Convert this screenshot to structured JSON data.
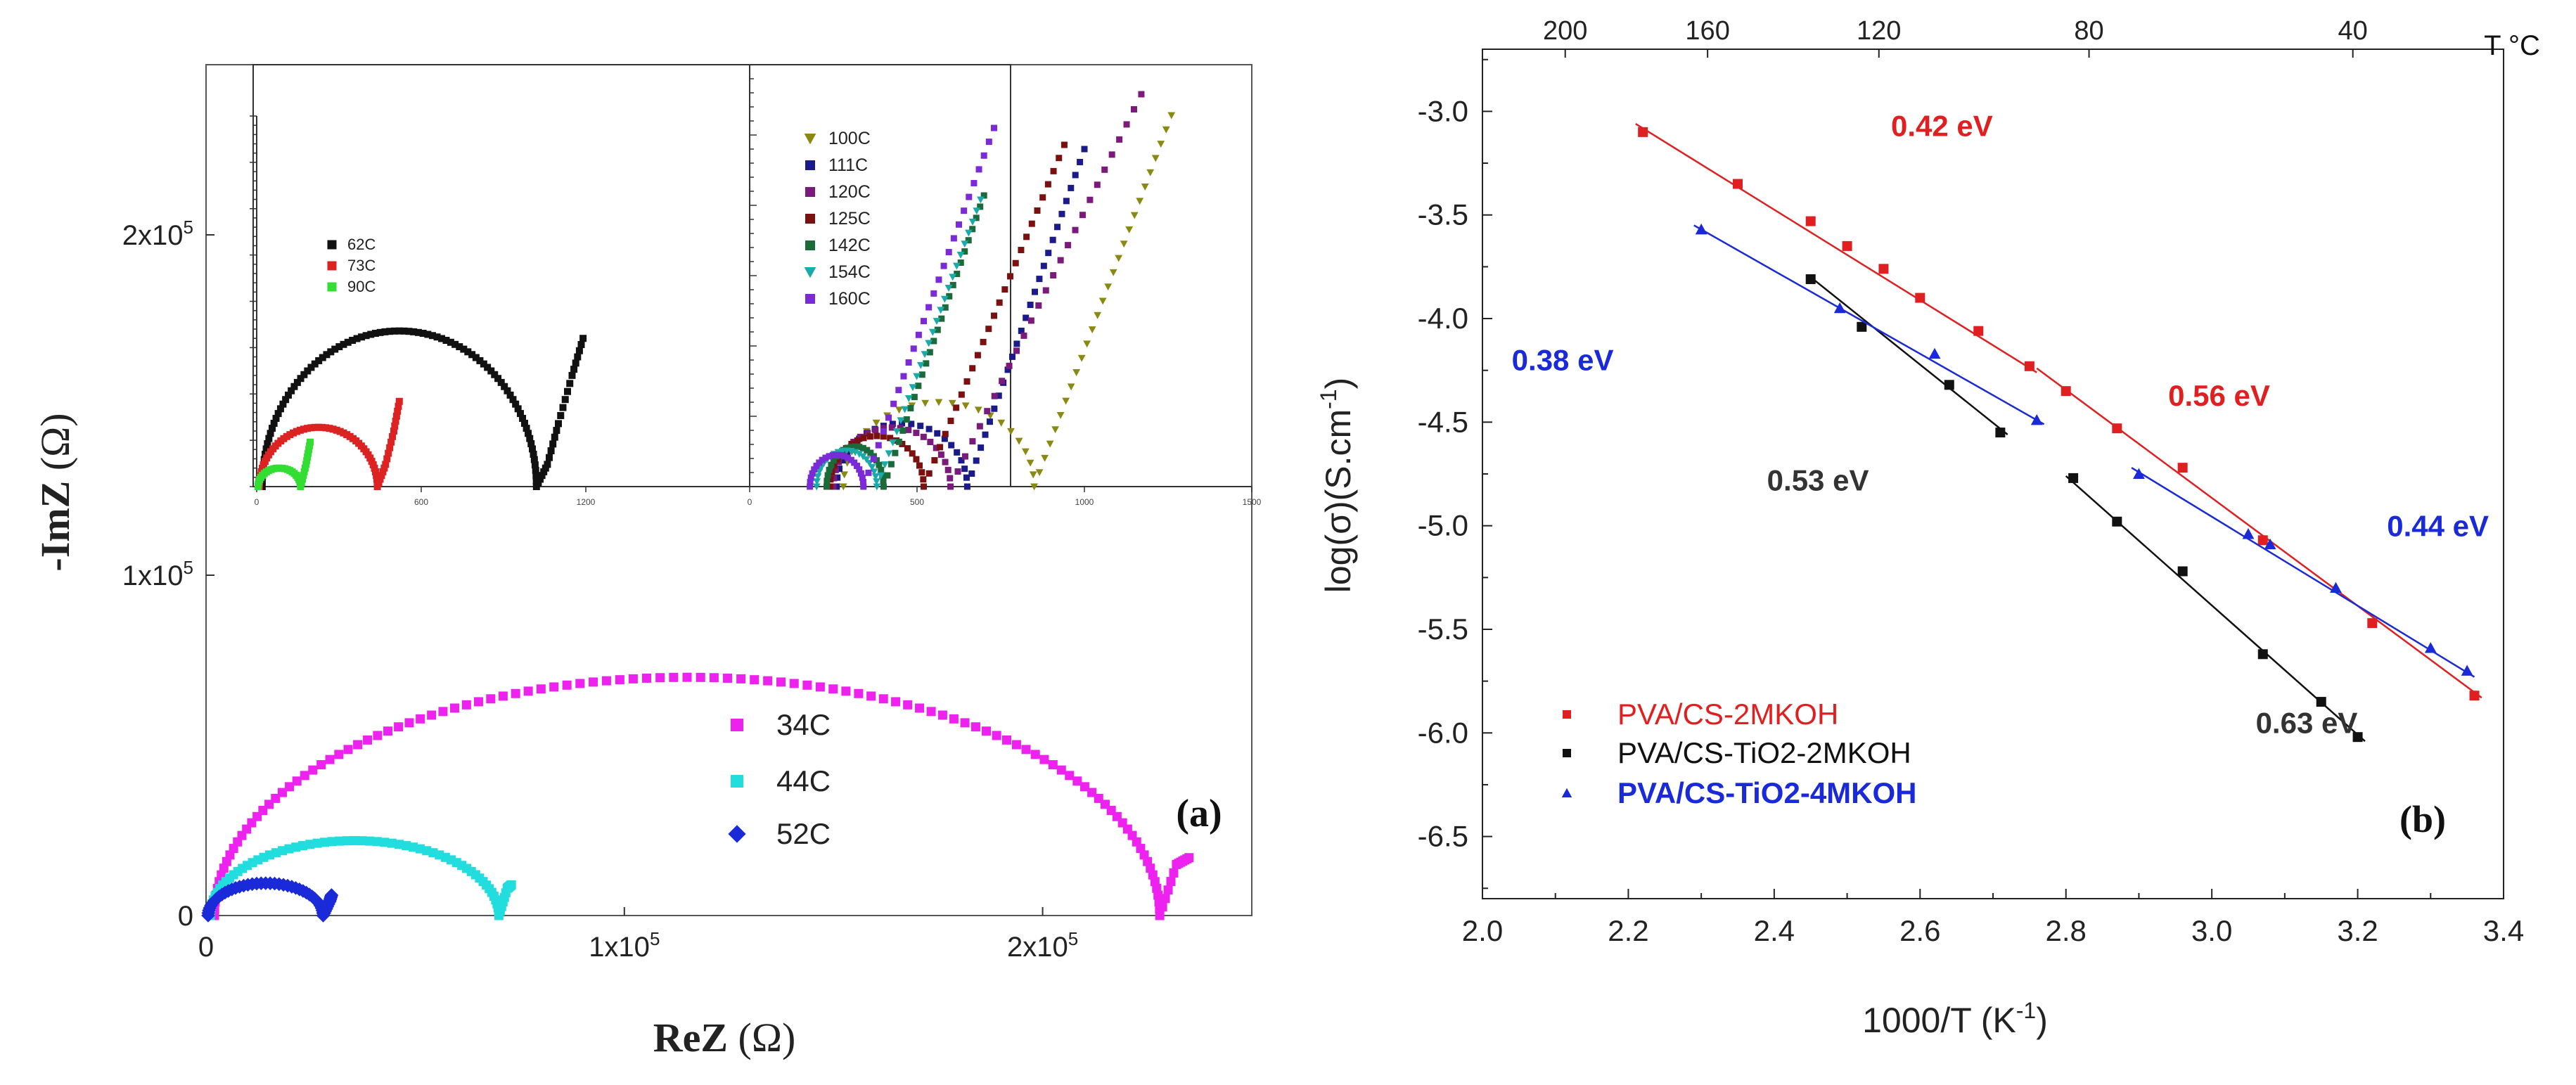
{
  "chart_data": [
    {
      "type": "scatter",
      "panel_label": "(a)",
      "xlabel_main": "ReZ",
      "xlabel_unit": "(Ω)",
      "ylabel_main": "-ImZ",
      "ylabel_unit": "(Ω)",
      "xlim": [
        0,
        250000
      ],
      "ylim": [
        0,
        250000
      ],
      "x_ticks": [
        {
          "v": 0,
          "m": "0",
          "e": ""
        },
        {
          "v": 100000,
          "m": "1x10",
          "e": "5"
        },
        {
          "v": 200000,
          "m": "2x10",
          "e": "5"
        }
      ],
      "y_ticks": [
        {
          "v": 0,
          "m": "0",
          "e": ""
        },
        {
          "v": 100000,
          "m": "1x10",
          "e": "5"
        },
        {
          "v": 200000,
          "m": "2x10",
          "e": "5"
        }
      ],
      "series": [
        {
          "name": "34C",
          "color": "#ee22ee",
          "marker": "square",
          "shape": "arc",
          "r0": 2000,
          "r1": 228000,
          "peak": 70000,
          "tail": [
            [
              232000,
              15000
            ],
            [
              235000,
              17000
            ]
          ]
        },
        {
          "name": "44C",
          "color": "#22dddd",
          "marker": "square",
          "shape": "arc",
          "r0": 1000,
          "r1": 70000,
          "peak": 22000,
          "tail": [
            [
              72000,
              8000
            ],
            [
              73000,
              9000
            ]
          ]
        },
        {
          "name": "52C",
          "color": "#1a2ad8",
          "marker": "diamond",
          "shape": "arc",
          "r0": 500,
          "r1": 28000,
          "peak": 9500,
          "tail": [
            [
              29500,
              4000
            ],
            [
              30000,
              6000
            ]
          ]
        }
      ],
      "insets": [
        {
          "type": "scatter",
          "xlim": [
            0,
            1500
          ],
          "ylim": [
            0,
            1000
          ],
          "x_ticks": [
            {
              "v": 0,
              "label": "0"
            },
            {
              "v": 600,
              "label": "600"
            },
            {
              "v": 1200,
              "label": "1200"
            }
          ],
          "series": [
            {
              "name": "62C",
              "color": "#111111",
              "marker": "square",
              "shape": "arc",
              "r0": 20,
              "r1": 1020,
              "peak": 420,
              "tail": [
                [
                  1060,
                  60
                ],
                [
                  1100,
                  170
                ],
                [
                  1150,
                  300
                ],
                [
                  1190,
                  400
                ]
              ]
            },
            {
              "name": "73C",
              "color": "#dd2222",
              "marker": "square",
              "shape": "arc",
              "r0": 10,
              "r1": 440,
              "peak": 160,
              "tail": [
                [
                  470,
                  60
                ],
                [
                  500,
                  150
                ],
                [
                  520,
                  230
                ]
              ]
            },
            {
              "name": "90C",
              "color": "#33dd33",
              "marker": "square",
              "shape": "arc",
              "r0": 5,
              "r1": 160,
              "peak": 50,
              "tail": [
                [
                  180,
                  60
                ],
                [
                  195,
                  120
                ]
              ]
            }
          ]
        },
        {
          "type": "scatter",
          "xlim": [
            0,
            1500
          ],
          "ylim": [
            0,
            1000
          ],
          "x_ticks": [
            {
              "v": 0,
              "label": "0"
            },
            {
              "v": 500,
              "label": "500"
            },
            {
              "v": 1000,
              "label": "1000"
            },
            {
              "v": 1500,
              "label": "1500"
            }
          ],
          "series": [
            {
              "name": "100C",
              "color": "#8a8a10",
              "marker": "triangle-down",
              "shape": "arc",
              "r0": 280,
              "r1": 850,
              "peak": 200,
              "tail": [
                [
                  1260,
                  880
                ]
              ]
            },
            {
              "name": "111C",
              "color": "#1a1a88",
              "marker": "square",
              "shape": "arc",
              "r0": 260,
              "r1": 650,
              "peak": 150,
              "tail": [
                [
                  1000,
                  800
                ]
              ]
            },
            {
              "name": "120C",
              "color": "#7a1a7a",
              "marker": "square",
              "shape": "arc",
              "r0": 250,
              "r1": 600,
              "peak": 140,
              "tail": [
                [
                  1170,
                  930
                ]
              ]
            },
            {
              "name": "125C",
              "color": "#7a1010",
              "marker": "square",
              "shape": "arc",
              "r0": 240,
              "r1": 520,
              "peak": 120,
              "tail": [
                [
                  940,
                  810
                ]
              ]
            },
            {
              "name": "142C",
              "color": "#1a6a3a",
              "marker": "square",
              "shape": "arc",
              "r0": 230,
              "r1": 400,
              "peak": 95,
              "tail": [
                [
                  700,
                  690
                ]
              ]
            },
            {
              "name": "154C",
              "color": "#1aaaaa",
              "marker": "triangle-down",
              "shape": "arc",
              "r0": 200,
              "r1": 380,
              "peak": 85,
              "tail": [
                [
                  690,
                  680
                ]
              ]
            },
            {
              "name": "160C",
              "color": "#7b2ad8",
              "marker": "square",
              "shape": "arc",
              "r0": 180,
              "r1": 340,
              "peak": 75,
              "tail": [
                [
                  730,
                  850
                ]
              ]
            }
          ]
        }
      ]
    },
    {
      "type": "scatter",
      "panel_label": "(b)",
      "xlabel_prefix": "1000/T (K",
      "xlabel_sup": "-1",
      "xlabel_suffix": ")",
      "ylabel_prefix": "log(σ)(S.cm",
      "ylabel_sup": "-1",
      "ylabel_suffix": ")",
      "xlim": [
        2.0,
        3.4
      ],
      "ylim": [
        -6.8,
        -2.7
      ],
      "x_ticks": [
        {
          "v": 2.0,
          "label": "2.0"
        },
        {
          "v": 2.2,
          "label": "2.2"
        },
        {
          "v": 2.4,
          "label": "2.4"
        },
        {
          "v": 2.6,
          "label": "2.6"
        },
        {
          "v": 2.8,
          "label": "2.8"
        },
        {
          "v": 3.0,
          "label": "3.0"
        },
        {
          "v": 3.2,
          "label": "3.2"
        },
        {
          "v": 3.4,
          "label": "3.4"
        }
      ],
      "y_ticks": [
        {
          "v": -3.0,
          "label": "-3.0"
        },
        {
          "v": -3.5,
          "label": "-3.5"
        },
        {
          "v": -4.0,
          "label": "-4.0"
        },
        {
          "v": -4.5,
          "label": "-4.5"
        },
        {
          "v": -5.0,
          "label": "-5.0"
        },
        {
          "v": -5.5,
          "label": "-5.5"
        },
        {
          "v": -6.0,
          "label": "-6.0"
        },
        {
          "v": -6.5,
          "label": "-6.5"
        }
      ],
      "top_axis_label": "T °C",
      "top_ticks": [
        {
          "v": 200,
          "label": "200"
        },
        {
          "v": 160,
          "label": "160"
        },
        {
          "v": 120,
          "label": "120"
        },
        {
          "v": 80,
          "label": "80"
        },
        {
          "v": 40,
          "label": "40"
        }
      ],
      "series": [
        {
          "name": "PVA/CS-2MKOH",
          "color": "#e02020",
          "marker": "square",
          "x": [
            2.22,
            2.35,
            2.45,
            2.5,
            2.55,
            2.6,
            2.68,
            2.75,
            2.8,
            2.87,
            2.96,
            3.07,
            3.22,
            3.36
          ],
          "y": [
            -3.1,
            -3.35,
            -3.53,
            -3.65,
            -3.76,
            -3.9,
            -4.06,
            -4.23,
            -4.35,
            -4.53,
            -4.72,
            -5.07,
            -5.47,
            -5.82
          ],
          "fits": [
            {
              "x": [
                2.21,
                2.76
              ],
              "y": [
                -3.06,
                -4.26
              ]
            },
            {
              "x": [
                2.76,
                3.37
              ],
              "y": [
                -4.24,
                -5.83
              ]
            }
          ]
        },
        {
          "name": "PVA/CS-TiO2-2MKOH",
          "color": "#111111",
          "marker": "square",
          "x": [
            2.45,
            2.52,
            2.64,
            2.71,
            2.81,
            2.87,
            2.96,
            3.07,
            3.15,
            3.2
          ],
          "y": [
            -3.81,
            -4.04,
            -4.32,
            -4.55,
            -4.77,
            -4.98,
            -5.22,
            -5.62,
            -5.85,
            -6.02
          ],
          "fits": [
            {
              "x": [
                2.45,
                2.72
              ],
              "y": [
                -3.8,
                -4.56
              ]
            },
            {
              "x": [
                2.8,
                3.21
              ],
              "y": [
                -4.76,
                -6.04
              ]
            }
          ]
        },
        {
          "name": "PVA/CS-TiO2-4MKOH",
          "color": "#1a2ad8",
          "marker": "triangle",
          "x": [
            2.3,
            2.49,
            2.62,
            2.76,
            2.9,
            3.05,
            3.08,
            3.17,
            3.3,
            3.35
          ],
          "y": [
            -3.57,
            -3.95,
            -4.17,
            -4.49,
            -4.75,
            -5.04,
            -5.09,
            -5.3,
            -5.59,
            -5.7
          ],
          "fits": [
            {
              "x": [
                2.29,
                2.77
              ],
              "y": [
                -3.55,
                -4.51
              ]
            },
            {
              "x": [
                2.89,
                3.36
              ],
              "y": [
                -4.72,
                -5.73
              ]
            }
          ]
        }
      ],
      "annotations": [
        {
          "text": "0.42 eV",
          "color": "#e02020",
          "at": [
            2.63,
            -3.12
          ]
        },
        {
          "text": "0.38 eV",
          "color": "#1a2ad8",
          "at": [
            2.11,
            -4.25
          ]
        },
        {
          "text": "0.53 eV",
          "color": "#333333",
          "at": [
            2.46,
            -4.83
          ]
        },
        {
          "text": "0.56 eV",
          "color": "#e02020",
          "at": [
            3.01,
            -4.42
          ]
        },
        {
          "text": "0.44 eV",
          "color": "#1a2ad8",
          "at": [
            3.31,
            -5.05
          ]
        },
        {
          "text": "0.63 eV",
          "color": "#333333",
          "at": [
            3.13,
            -6.0
          ]
        }
      ]
    }
  ]
}
